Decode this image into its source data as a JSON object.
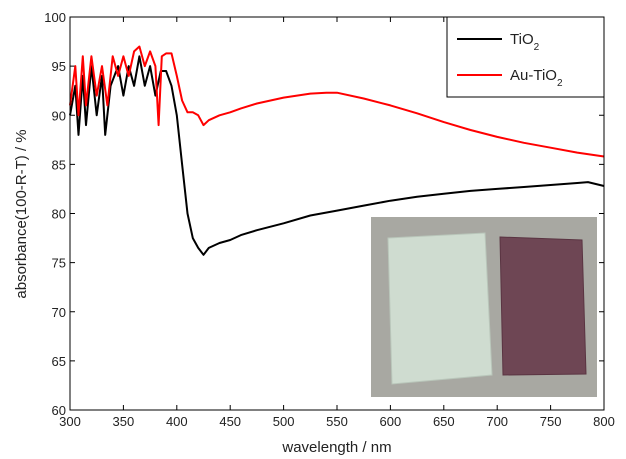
{
  "chart_data": {
    "type": "line",
    "xlabel": "wavelength / nm",
    "ylabel": "absorbance(100-R-T) / %",
    "xlim": [
      300,
      800
    ],
    "xticks": [
      300,
      350,
      400,
      450,
      500,
      550,
      600,
      650,
      700,
      750,
      800
    ],
    "ylim": [
      60,
      100
    ],
    "yticks": [
      60,
      65,
      70,
      75,
      80,
      85,
      90,
      95,
      100
    ],
    "legend": "upper right",
    "series": [
      {
        "name": "TiO2",
        "color": "#000000",
        "x": [
          300,
          305,
          308,
          312,
          315,
          320,
          325,
          330,
          333,
          338,
          345,
          350,
          355,
          360,
          365,
          370,
          375,
          380,
          385,
          390,
          395,
          400,
          405,
          410,
          415,
          420,
          425,
          430,
          440,
          450,
          460,
          475,
          500,
          525,
          550,
          575,
          600,
          625,
          650,
          675,
          700,
          725,
          750,
          775,
          785,
          800
        ],
        "values": [
          90,
          93,
          88,
          94,
          89,
          95,
          90,
          94,
          88,
          93,
          95,
          92,
          95,
          93,
          96,
          93,
          95,
          92,
          94.5,
          94.5,
          93,
          90,
          85,
          80,
          77.5,
          76.5,
          75.8,
          76.5,
          77,
          77.3,
          77.8,
          78.3,
          79,
          79.8,
          80.3,
          80.8,
          81.3,
          81.7,
          82,
          82.3,
          82.5,
          82.7,
          82.9,
          83.1,
          83.2,
          82.8
        ]
      },
      {
        "name": "Au-TiO2",
        "color": "#ff0000",
        "x": [
          300,
          305,
          308,
          312,
          315,
          320,
          325,
          330,
          335,
          340,
          345,
          350,
          355,
          360,
          365,
          370,
          375,
          380,
          383,
          386,
          390,
          395,
          400,
          405,
          410,
          415,
          420,
          425,
          430,
          440,
          450,
          460,
          475,
          500,
          525,
          540,
          550,
          575,
          600,
          625,
          650,
          675,
          700,
          725,
          750,
          775,
          800
        ],
        "values": [
          91,
          95,
          90,
          96,
          91,
          96,
          92,
          95,
          91,
          96,
          94,
          96,
          94,
          96.5,
          97,
          95,
          96.5,
          95,
          89,
          96,
          96.3,
          96.3,
          94,
          91.5,
          90.3,
          90.3,
          90,
          89,
          89.5,
          90,
          90.3,
          90.7,
          91.2,
          91.8,
          92.2,
          92.3,
          92.3,
          91.7,
          91,
          90.2,
          89.3,
          88.5,
          87.8,
          87.2,
          86.7,
          86.2,
          85.8
        ]
      }
    ]
  }
}
